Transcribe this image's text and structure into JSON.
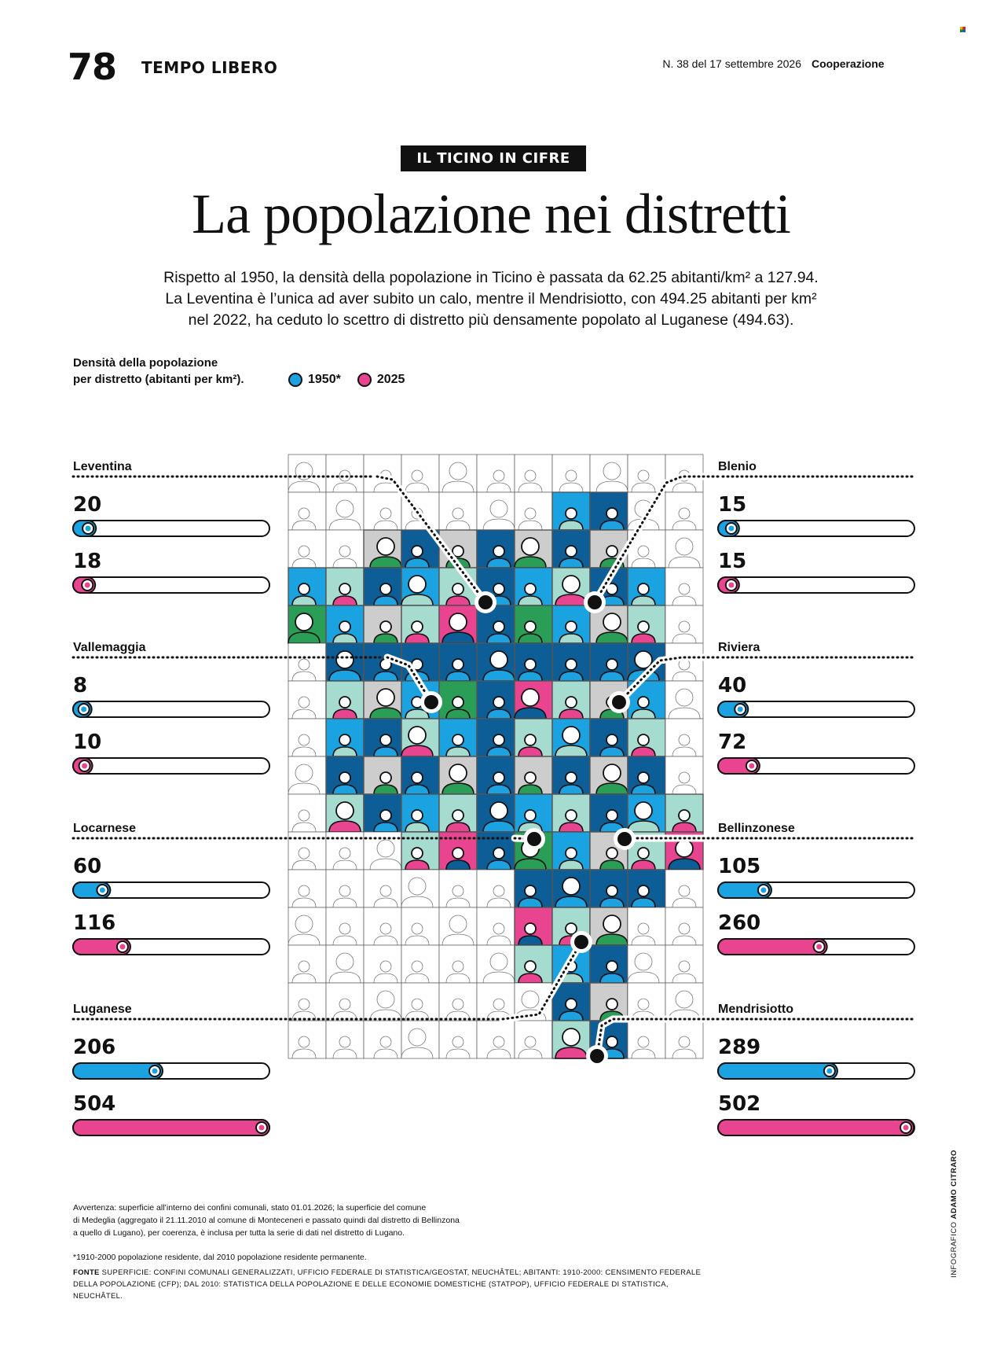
{
  "header": {
    "page_number": "78",
    "section": "TEMPO LIBERO",
    "issue": "N. 38 del 17 settembre 2026",
    "magazine": "Cooperazione"
  },
  "kicker": "IL TICINO IN CIFRE",
  "title": "La popolazione nei distretti",
  "lead": [
    "Rispetto al 1950, la densità della popolazione in Ticino è passata da 62.25 abitanti/km² a 127.94.",
    "La Leventina è l’unica ad aver subito un calo, mentre il Mendrisiotto, con 494.25 abitanti per km²",
    "nel 2022, ha ceduto lo scettro di distretto più densamente popolato al Luganese (494.63)."
  ],
  "legend": {
    "description": [
      "Densità della popolazione",
      "per distretto (abitanti per km²)."
    ],
    "items": [
      {
        "label": "1950*",
        "color": "#1ba3e1"
      },
      {
        "label": "2025",
        "color": "#e8448f"
      }
    ]
  },
  "colors": {
    "blue": "#1ba3e1",
    "pink": "#e8448f",
    "green": "#2a9e57",
    "navy": "#0d5d96",
    "mint": "#a6dccf",
    "gray": "#cdcdcd"
  },
  "chart_data": {
    "type": "bar",
    "title": "Densità della popolazione per distretto (abitanti per km²).",
    "series_names": [
      "1950*",
      "2025"
    ],
    "districts": [
      {
        "name": "Leventina",
        "v1950": "20",
        "v2025": "18"
      },
      {
        "name": "Blenio",
        "v1950": "15",
        "v2025": "15"
      },
      {
        "name": "Vallemaggia",
        "v1950": "8",
        "v2025": "10"
      },
      {
        "name": "Riviera",
        "v1950": "40",
        "v2025": "72"
      },
      {
        "name": "Locarnese",
        "v1950": "60",
        "v2025": "116"
      },
      {
        "name": "Bellinzonese",
        "v1950": "105",
        "v2025": "260"
      },
      {
        "name": "Luganese",
        "v1950": "206",
        "v2025": "504"
      },
      {
        "name": "Mendrisiotto",
        "v1950": "289",
        "v2025": "502"
      }
    ],
    "xlim": [
      0,
      504
    ]
  },
  "notes": {
    "warning": [
      "Avvertenza: superficie all’interno dei confini comunali, stato 01.01.2026; la superficie del comune",
      "di Medeglia (aggregato il 21.11.2010 al comune di Monteceneri e passato quindi dal distretto di Bellinzona",
      "a quello di Lugano), per coerenza, è inclusa per tutta la serie di dati nel distretto di Lugano."
    ],
    "footnote": "*1910-2000 popolazione residente, dal 2010 popolazione residente permanente.",
    "source_label": "FONTE",
    "source": [
      " SUPERFICIE: CONFINI COMUNALI GENERALIZZATI, UFFICIO FEDERALE DI STATISTICA/GEOSTAT, NEUCHÂTEL; ABITANTI: 1910-2000: CENSIMENTO FEDERALE",
      "DELLA POPOLAZIONE (CFP); DAL 2010: STATISTICA DELLA POPOLAZIONE E DELLE ECONOMIE DOMESTICHE (STATPOP), UFFICIO FEDERALE DI STATISTICA, NEUCHÂTEL."
    ],
    "credit_label": "INFOGRAFICO ",
    "credit_name": "ADAMO CITRARO"
  }
}
